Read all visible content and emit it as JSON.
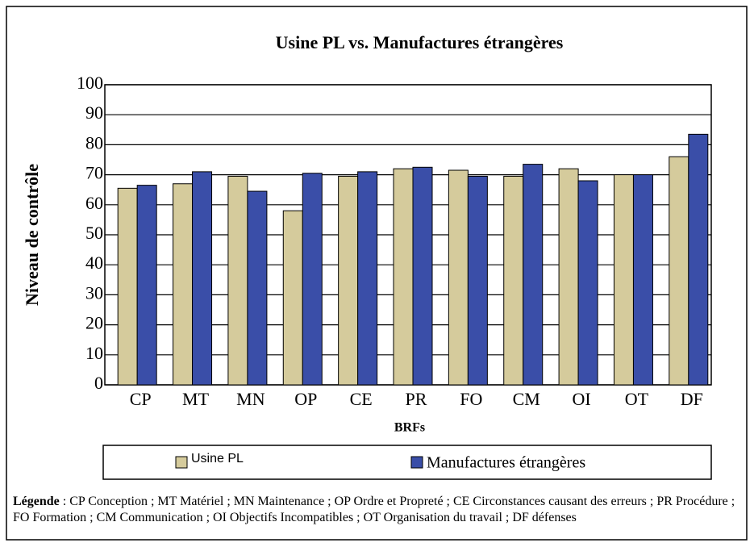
{
  "chart_data": {
    "type": "bar",
    "title": "Usine PL vs. Manufactures étrangères",
    "y_label": "Niveau de contrôle",
    "x_label": "BRFs",
    "categories": [
      "CP",
      "MT",
      "MN",
      "OP",
      "CE",
      "PR",
      "FO",
      "CM",
      "OI",
      "OT",
      "DF"
    ],
    "series": [
      {
        "name": "Usine PL",
        "color": "#d5cb9c",
        "values": [
          65.5,
          67,
          69.5,
          58,
          69.5,
          72,
          71.5,
          69.5,
          72,
          70,
          76
        ]
      },
      {
        "name": "Manufactures étrangères",
        "color": "#3a4ea8",
        "values": [
          66.5,
          71,
          64.5,
          70.5,
          71,
          72.5,
          69.5,
          73.5,
          68,
          70,
          83.5
        ]
      }
    ],
    "ylim": [
      0,
      100
    ],
    "yticks": [
      0,
      10,
      20,
      30,
      40,
      50,
      60,
      70,
      80,
      90,
      100
    ],
    "grid": true
  },
  "legend_note_label": "Légende",
  "legend_note": " : CP Conception ; MT Matériel ; MN Maintenance ; OP Ordre et Propreté ;  CE Circonstances causant des erreurs ;  PR Procédure ;  FO Formation ; CM Communication ;  OI Objectifs Incompatibles ; OT Organisation du travail ; DF défenses"
}
